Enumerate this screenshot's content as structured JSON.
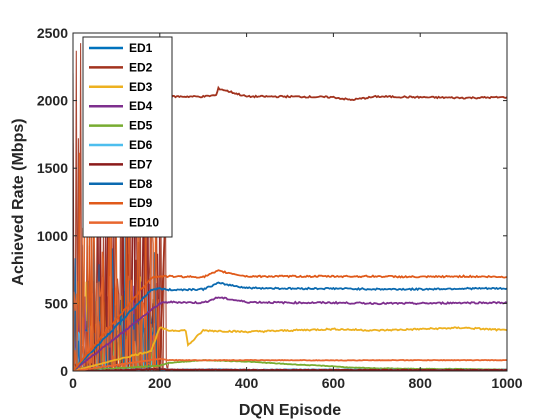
{
  "chart_data": {
    "type": "line",
    "title": "",
    "xlabel": "DQN Episode",
    "ylabel": "Achieved Rate (Mbps)",
    "xlim": [
      0,
      1000
    ],
    "ylim": [
      0,
      2500
    ],
    "xticks": [
      0,
      200,
      400,
      600,
      800,
      1000
    ],
    "yticks": [
      0,
      500,
      1000,
      1500,
      2000,
      2500
    ],
    "xtick_labels": [
      "0",
      "200",
      "400",
      "600",
      "800",
      "1000"
    ],
    "ytick_labels": [
      "0",
      "500",
      "1000",
      "1500",
      "2000",
      "2500"
    ],
    "grid": false,
    "legend_position": "top-left",
    "series": [
      {
        "name": "ED1",
        "color": "#0072BD",
        "x": [
          0,
          200,
          220,
          300,
          335,
          400,
          500,
          600,
          700,
          800,
          900,
          1000
        ],
        "y": [
          0,
          5,
          8,
          10,
          12,
          8,
          10,
          10,
          8,
          10,
          9,
          10
        ]
      },
      {
        "name": "ED2",
        "color": "#A2331E",
        "x": [
          0,
          200,
          222,
          230,
          300,
          330,
          335,
          400,
          500,
          600,
          640,
          700,
          800,
          900,
          1000
        ],
        "y": [
          0,
          10,
          2020,
          2030,
          2030,
          2040,
          2090,
          2030,
          2030,
          2025,
          2005,
          2030,
          2025,
          2020,
          2025
        ]
      },
      {
        "name": "ED3",
        "color": "#EDB120",
        "x": [
          0,
          180,
          200,
          220,
          260,
          265,
          300,
          400,
          500,
          600,
          700,
          800,
          900,
          1000
        ],
        "y": [
          0,
          150,
          320,
          300,
          300,
          190,
          300,
          290,
          300,
          310,
          300,
          310,
          320,
          300
        ]
      },
      {
        "name": "ED4",
        "color": "#7E2F8E",
        "x": [
          0,
          200,
          220,
          300,
          335,
          400,
          500,
          600,
          700,
          800,
          900,
          1000
        ],
        "y": [
          0,
          500,
          510,
          505,
          545,
          510,
          505,
          505,
          500,
          500,
          505,
          505
        ]
      },
      {
        "name": "ED5",
        "color": "#77AC30",
        "x": [
          0,
          200,
          220,
          300,
          400,
          500,
          600,
          640,
          700,
          800,
          900,
          1000
        ],
        "y": [
          0,
          40,
          60,
          80,
          70,
          50,
          35,
          25,
          20,
          15,
          15,
          10
        ]
      },
      {
        "name": "ED6",
        "color": "#4DBEEE",
        "x": [
          0,
          200,
          220,
          300,
          400,
          500,
          600,
          700,
          800,
          900,
          1000
        ],
        "y": [
          0,
          15,
          10,
          10,
          8,
          8,
          8,
          8,
          8,
          8,
          8
        ]
      },
      {
        "name": "ED7",
        "color": "#8B1A1A",
        "x": [
          0,
          200,
          220,
          300,
          400,
          500,
          600,
          700,
          800,
          900,
          1000
        ],
        "y": [
          0,
          15,
          10,
          10,
          8,
          8,
          8,
          8,
          8,
          8,
          8
        ]
      },
      {
        "name": "ED8",
        "color": "#0B6AB0",
        "x": [
          0,
          180,
          200,
          220,
          300,
          335,
          400,
          500,
          600,
          700,
          800,
          900,
          1000
        ],
        "y": [
          0,
          600,
          610,
          600,
          605,
          650,
          615,
          610,
          610,
          605,
          605,
          610,
          610
        ]
      },
      {
        "name": "ED9",
        "color": "#E05A1A",
        "x": [
          0,
          180,
          200,
          220,
          300,
          335,
          400,
          500,
          600,
          700,
          800,
          900,
          1000
        ],
        "y": [
          0,
          690,
          700,
          700,
          695,
          740,
          700,
          700,
          700,
          700,
          695,
          700,
          695
        ]
      },
      {
        "name": "ED10",
        "color": "#E8662E",
        "x": [
          0,
          200,
          220,
          300,
          400,
          500,
          600,
          700,
          800,
          900,
          1000
        ],
        "y": [
          0,
          90,
          80,
          80,
          80,
          80,
          78,
          80,
          80,
          80,
          80
        ]
      }
    ]
  }
}
